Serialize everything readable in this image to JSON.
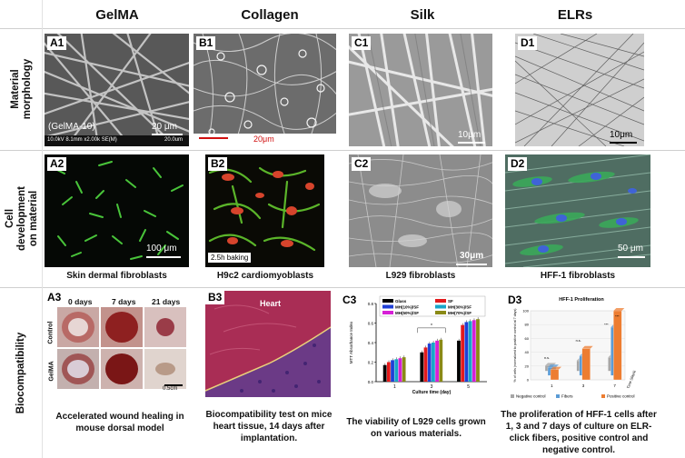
{
  "columns": [
    "GelMA",
    "Collagen",
    "Silk",
    "ELRs"
  ],
  "rows": [
    "Material morphology",
    "Cell development on material",
    "Biocompatibility"
  ],
  "panels": {
    "A1": {
      "label": "A1",
      "sample": "(GelMA-10)",
      "scale": "20 μm",
      "footer": "10.0kV 8.1mm x2.00k SE(M)",
      "footer_scale": "20.0um"
    },
    "B1": {
      "label": "B1",
      "scale": "20μm"
    },
    "C1": {
      "label": "C1",
      "scale": "10μm"
    },
    "D1": {
      "label": "D1",
      "scale": "10μm"
    },
    "A2": {
      "label": "A2",
      "scale": "100 μm"
    },
    "B2": {
      "label": "B2",
      "note": "2.5h baking"
    },
    "C2": {
      "label": "C2",
      "scale": "30μm"
    },
    "D2": {
      "label": "D2",
      "scale": "50 μm"
    },
    "A3": {
      "label": "A3",
      "times": [
        "0 days",
        "7 days",
        "21 days"
      ],
      "groups": [
        "Control",
        "GelMA"
      ],
      "scale": "0.5cm"
    },
    "B3": {
      "label": "B3",
      "tissue": "Heart"
    },
    "C3": {
      "label": "C3"
    },
    "D3": {
      "label": "D3"
    }
  },
  "captions": {
    "A2": "Skin dermal fibroblasts",
    "B2": "H9c2 cardiomyoblasts",
    "C2": "L929 fibroblasts",
    "D2": "HFF-1 fibroblasts",
    "A3": "Accelerated wound healing in mouse dorsal model",
    "B3": "Biocompatibility test on mice heart tissue, 14 days after implantation.",
    "C3": "The viability of L929 cells grown on various materials.",
    "D3": "The proliferation of HFF-1 cells after 1, 3 and 7 days of culture on ELR-click fibers, positive control and negative control."
  },
  "chart_data": [
    {
      "type": "bar",
      "panel": "C3",
      "ylabel": "MTT Absorbance Index",
      "xlabel": "Culture time (day)",
      "categories": [
        "1",
        "3",
        "5"
      ],
      "ylim": [
        0.0,
        0.8
      ],
      "series": [
        {
          "name": "Glass",
          "color": "#000000",
          "values": [
            0.17,
            0.3,
            0.42
          ]
        },
        {
          "name": "SF",
          "color": "#e31a1c",
          "values": [
            0.2,
            0.35,
            0.58
          ]
        },
        {
          "name": "MH(10%)/SF",
          "color": "#1f3fd6",
          "values": [
            0.22,
            0.39,
            0.61
          ]
        },
        {
          "name": "MH(30%)/SF",
          "color": "#18a6c9",
          "values": [
            0.23,
            0.4,
            0.62
          ]
        },
        {
          "name": "MH(50%)/SF",
          "color": "#d61fd6",
          "values": [
            0.24,
            0.42,
            0.63
          ]
        },
        {
          "name": "MH(70%)/SF",
          "color": "#8a8a16",
          "values": [
            0.25,
            0.43,
            0.64
          ]
        }
      ],
      "significance": [
        "*",
        "*"
      ]
    },
    {
      "type": "bar",
      "panel": "D3",
      "title": "HFF-1 Proliferation",
      "ylabel": "% of cells (normalized to positive control at 7 days)",
      "xlabel": "Time (days)",
      "categories": [
        "1",
        "3",
        "7"
      ],
      "ylim": [
        0,
        100
      ],
      "series": [
        {
          "name": "Negative control",
          "color": "#a6a6a6",
          "values": [
            8,
            15,
            20
          ]
        },
        {
          "name": "Fibers",
          "color": "#5b9bd5",
          "values": [
            12,
            28,
            70
          ]
        },
        {
          "name": "Positive control",
          "color": "#ed7d31",
          "values": [
            15,
            45,
            100
          ]
        }
      ],
      "significance": [
        "n.s.",
        "n.s.",
        "***",
        "***"
      ]
    }
  ]
}
